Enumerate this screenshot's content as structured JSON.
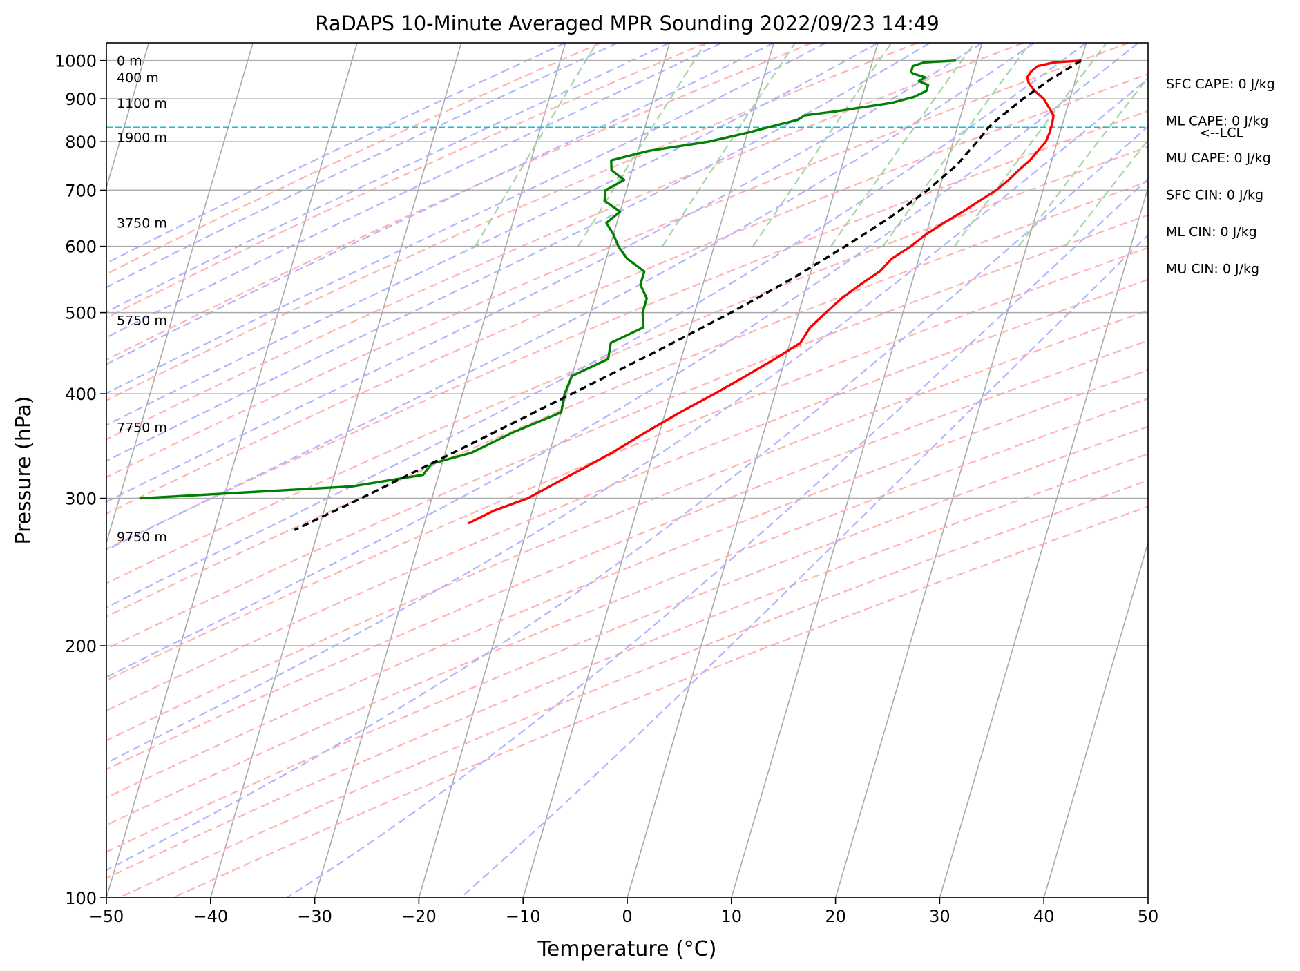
{
  "chart_data": {
    "type": "line",
    "title": "RaDAPS 10-Minute Averaged MPR Sounding 2022/09/23 14:49",
    "xlabel": "Temperature (°C)",
    "ylabel": "Pressure (hPa)",
    "xlim": [
      -50,
      50
    ],
    "ylim": [
      1050,
      100
    ],
    "y_scale": "log",
    "x_ticks": [
      -50,
      -40,
      -30,
      -20,
      -10,
      0,
      10,
      20,
      30,
      40,
      50
    ],
    "x_tick_labels": [
      "−50",
      "−40",
      "−30",
      "−20",
      "−10",
      "0",
      "10",
      "20",
      "30",
      "40",
      "50"
    ],
    "y_ticks": [
      100,
      200,
      300,
      400,
      500,
      600,
      700,
      800,
      900,
      1000
    ],
    "y_tick_labels": [
      "100",
      "200",
      "300",
      "400",
      "500",
      "600",
      "700",
      "800",
      "900",
      "1000"
    ],
    "grid": true,
    "colors": {
      "temperature": "#ff0000",
      "dewpoint": "#008000",
      "parcel": "#000000",
      "lcl": "#17becf",
      "isotherm": "#aaaaaa",
      "dry_adiabat": "#ffb3b3",
      "moist_adiabat": "#b3b3ff",
      "mixing_ratio": "#a3d6a3"
    },
    "series": [
      {
        "key": "temperature",
        "pressure": [
          1000,
          995,
          985,
          970,
          955,
          940,
          920,
          900,
          880,
          860,
          840,
          820,
          800,
          780,
          760,
          740,
          720,
          700,
          680,
          660,
          640,
          620,
          600,
          580,
          560,
          540,
          520,
          500,
          480,
          460,
          440,
          420,
          400,
          380,
          360,
          340,
          320,
          300,
          290,
          280
        ],
        "values": [
          20.0,
          17.5,
          16.0,
          15.5,
          15.3,
          15.6,
          16.4,
          17.5,
          18.2,
          18.9,
          19.0,
          19.0,
          18.9,
          18.4,
          17.9,
          17.1,
          16.4,
          15.5,
          14.2,
          12.9,
          11.4,
          10.0,
          8.9,
          7.4,
          6.6,
          5.1,
          3.7,
          2.6,
          1.5,
          1.0,
          -1.0,
          -3.3,
          -5.8,
          -8.6,
          -11.3,
          -14.0,
          -17.3,
          -20.8,
          -23.7,
          -25.8
        ]
      },
      {
        "key": "dewpoint",
        "pressure": [
          1000,
          995,
          985,
          970,
          965,
          955,
          945,
          935,
          920,
          905,
          890,
          870,
          860,
          850,
          840,
          830,
          820,
          800,
          780,
          760,
          740,
          720,
          700,
          680,
          660,
          640,
          620,
          600,
          580,
          560,
          540,
          520,
          500,
          480,
          460,
          440,
          420,
          400,
          380,
          360,
          340,
          330,
          320,
          310,
          300
        ],
        "values": [
          8.0,
          5.0,
          4.0,
          4.0,
          4.2,
          5.5,
          5.0,
          6.0,
          6.0,
          5.0,
          3.0,
          -2.0,
          -5.0,
          -5.5,
          -7.0,
          -8.5,
          -10.0,
          -13.5,
          -19.0,
          -22.3,
          -22.0,
          -20.5,
          -22.0,
          -21.8,
          -20.0,
          -21.0,
          -20.0,
          -19.2,
          -18.0,
          -16.0,
          -16.0,
          -15.0,
          -15.0,
          -14.5,
          -17.2,
          -17.0,
          -20.0,
          -20.2,
          -20.0,
          -24.0,
          -27.5,
          -31.0,
          -31.5,
          -38.0,
          -58.0
        ]
      },
      {
        "key": "parcel",
        "pressure": [
          1000,
          950,
          900,
          850,
          832,
          800,
          750,
          700,
          650,
          600,
          550,
          500,
          450,
          400,
          350,
          300,
          275
        ],
        "values": [
          20.0,
          17.6,
          15.5,
          13.6,
          13.0,
          12.3,
          11.0,
          8.9,
          6.1,
          2.6,
          -1.5,
          -6.5,
          -12.5,
          -19.5,
          -27.5,
          -36.8,
          -42.3
        ]
      }
    ],
    "lcl": {
      "pressure": 832,
      "label": "<--LCL"
    },
    "height_labels": [
      {
        "pressure": 1000,
        "text": "0 m"
      },
      {
        "pressure": 955,
        "text": "400 m"
      },
      {
        "pressure": 890,
        "text": "1100 m"
      },
      {
        "pressure": 810,
        "text": "1900 m"
      },
      {
        "pressure": 640,
        "text": "3750 m"
      },
      {
        "pressure": 490,
        "text": "5750 m"
      },
      {
        "pressure": 365,
        "text": "7750 m"
      },
      {
        "pressure": 270,
        "text": "9750 m"
      }
    ],
    "indices": [
      "SFC CAPE: 0 J/kg",
      "ML CAPE: 0 J/kg",
      "MU CAPE: 0 J/kg",
      "SFC CIN: 0 J/kg",
      "ML CIN: 0 J/kg",
      "MU CIN: 0 J/kg"
    ]
  }
}
